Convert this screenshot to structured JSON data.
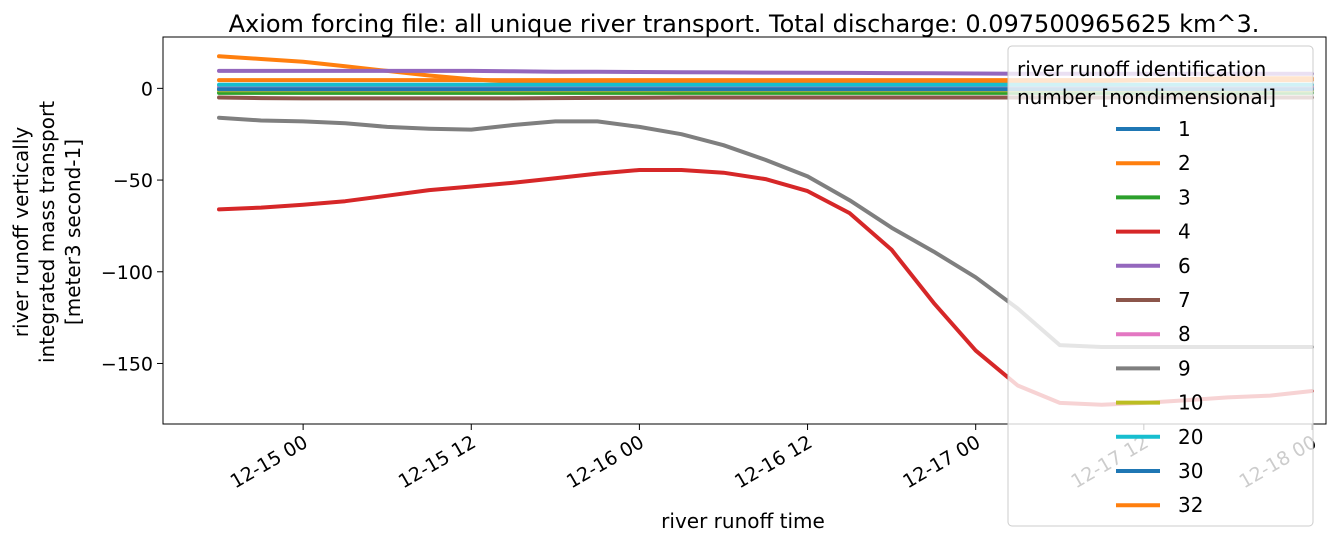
{
  "chart_data": {
    "type": "line",
    "title": "Axiom forcing file: all unique river transport. Total discharge: 0.097500965625 km^3.",
    "xlabel": "river runoff time",
    "ylabel_lines": [
      "river runoff vertically",
      "integrated mass transport",
      "[meter3 second-1]"
    ],
    "xlim_hours": [
      -10,
      73
    ],
    "ylim": [
      -183,
      28
    ],
    "grid": false,
    "legend": {
      "placement": "top-right",
      "title_lines": [
        "river runoff identification",
        "number [nondimensional]"
      ]
    },
    "x_ticks": [
      {
        "label": "12-15 00",
        "hour": 0
      },
      {
        "label": "12-15 12",
        "hour": 12
      },
      {
        "label": "12-16 00",
        "hour": 24
      },
      {
        "label": "12-16 12",
        "hour": 36
      },
      {
        "label": "12-17 00",
        "hour": 48
      },
      {
        "label": "12-17 12",
        "hour": 60
      },
      {
        "label": "12-18 00",
        "hour": 72
      }
    ],
    "y_ticks": [
      0,
      -50,
      -100,
      -150
    ],
    "x_hours": [
      -6,
      -3,
      0,
      3,
      6,
      9,
      12,
      15,
      18,
      21,
      24,
      27,
      30,
      33,
      36,
      39,
      42,
      45,
      48,
      51,
      54,
      57,
      60,
      63,
      66,
      69,
      72
    ],
    "series": [
      {
        "name": "1",
        "color": "#1f77b4",
        "values": [
          0.5,
          0.5,
          0.5,
          0.5,
          0.5,
          0.5,
          0.5,
          0.5,
          0.5,
          0.5,
          0.5,
          0.5,
          0.5,
          0.5,
          0.5,
          0.5,
          0.5,
          0.5,
          0.5,
          0.5,
          0.5,
          0.5,
          0.5,
          0.5,
          0.5,
          0.5,
          0.5
        ]
      },
      {
        "name": "2",
        "color": "#ff7f0e",
        "values": [
          17.5,
          16,
          14.5,
          12,
          9.5,
          7,
          5,
          3.5,
          3,
          3,
          3,
          3,
          3,
          3,
          3,
          3,
          3,
          3,
          3,
          3,
          3.5,
          4,
          4.5,
          5,
          5.5,
          5.5,
          5.5
        ]
      },
      {
        "name": "3",
        "color": "#2ca02c",
        "values": [
          -2.5,
          -2.5,
          -2.5,
          -2.5,
          -2.5,
          -2.5,
          -2.5,
          -2.5,
          -2.5,
          -2.5,
          -2.5,
          -2.5,
          -2.5,
          -2.5,
          -2.5,
          -2.5,
          -2.5,
          -2.5,
          -2.5,
          -2.5,
          -2.5,
          -2.5,
          -2.5,
          -2.5,
          -2.5,
          -2.5,
          -2.5
        ]
      },
      {
        "name": "4",
        "color": "#d62728",
        "values": [
          -66,
          -65,
          -63.5,
          -61.5,
          -58.5,
          -55.5,
          -53.5,
          -51.5,
          -49,
          -46.5,
          -44.5,
          -44.5,
          -46,
          -49.5,
          -56,
          -68,
          -88,
          -117,
          -143,
          -162,
          -171.5,
          -172.5,
          -171.5,
          -170,
          -168.5,
          -167.5,
          -165
        ]
      },
      {
        "name": "6",
        "color": "#9467bd",
        "values": [
          9.5,
          9.5,
          9.5,
          9.5,
          9.5,
          9.5,
          9.5,
          9.3,
          9.1,
          9,
          8.9,
          8.8,
          8.7,
          8.6,
          8.5,
          8.4,
          8.3,
          8.2,
          8.1,
          8,
          8,
          8,
          8,
          8,
          8,
          8,
          8
        ]
      },
      {
        "name": "7",
        "color": "#8c564b",
        "values": [
          -5,
          -5.3,
          -5.5,
          -5.5,
          -5.5,
          -5.5,
          -5.5,
          -5.5,
          -5.3,
          -5.2,
          -5.1,
          -5,
          -5,
          -5,
          -5,
          -5,
          -5,
          -5,
          -5,
          -5,
          -5,
          -5,
          -5,
          -5,
          -5,
          -5,
          -5
        ]
      },
      {
        "name": "8",
        "color": "#e377c2",
        "values": [
          1,
          1,
          1,
          1,
          1,
          1,
          1,
          1,
          1,
          1,
          1,
          1,
          1,
          1,
          1,
          1,
          1,
          1,
          1,
          1,
          1,
          1,
          1,
          1,
          1,
          1,
          1
        ]
      },
      {
        "name": "9",
        "color": "#7f7f7f",
        "values": [
          -16,
          -17.5,
          -18,
          -19,
          -21,
          -22,
          -22.5,
          -20,
          -18,
          -18,
          -21,
          -25,
          -31,
          -39,
          -48,
          -61,
          -76,
          -89,
          -103,
          -120,
          -140,
          -141,
          -141,
          -141,
          -141,
          -141,
          -141
        ]
      },
      {
        "name": "10",
        "color": "#bcbd22",
        "values": [
          -1,
          -1,
          -1,
          -1,
          -1,
          -1,
          -1,
          -1,
          -1,
          -1,
          -1,
          -1,
          -1,
          -1,
          -1,
          -1,
          -1,
          -1,
          -1,
          -1,
          -1,
          -1,
          -1,
          -1,
          -1,
          -1,
          -1
        ]
      },
      {
        "name": "20",
        "color": "#17becf",
        "values": [
          2,
          2,
          2,
          2,
          2,
          2,
          2,
          2,
          2,
          2,
          2,
          2,
          2,
          2,
          2,
          2,
          2,
          2,
          2,
          2,
          2,
          2,
          2,
          2,
          2,
          2,
          2
        ]
      },
      {
        "name": "30",
        "color": "#1f77b4",
        "values": [
          -0.5,
          -0.5,
          -0.5,
          -0.5,
          -0.5,
          -0.5,
          -0.5,
          -0.5,
          -0.5,
          -0.5,
          -0.5,
          -0.5,
          -0.5,
          -0.5,
          -0.5,
          -0.5,
          -0.5,
          -0.5,
          -0.5,
          -0.5,
          -0.5,
          -0.5,
          -0.5,
          -0.5,
          -0.5,
          -0.5,
          -0.5
        ]
      },
      {
        "name": "32",
        "color": "#ff7f0e",
        "values": [
          4.5,
          4.5,
          4.5,
          4.5,
          4.5,
          4.5,
          4.5,
          4.5,
          4.5,
          4.5,
          4.5,
          4.5,
          4.5,
          4.5,
          4.5,
          4.5,
          4.5,
          4.5,
          4.5,
          4.5,
          4.5,
          4.5,
          4.5,
          4.5,
          4.5,
          4.5,
          4.5
        ]
      }
    ]
  }
}
